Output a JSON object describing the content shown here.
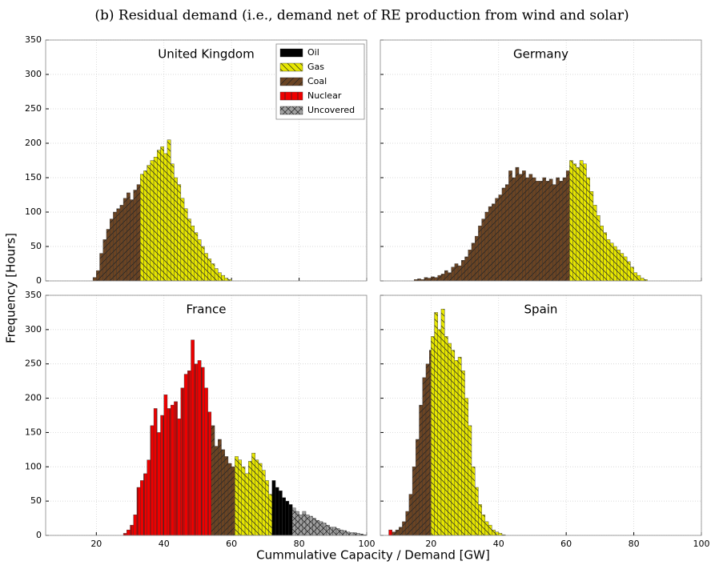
{
  "title": "(b) Residual demand (i.e., demand net of RE production from wind and solar)",
  "xlabel": "Cummulative Capacity / Demand [GW]",
  "ylabel": "Frequency [Hours]",
  "legend": [
    {
      "name": "Oil",
      "color": "#000000",
      "hatch": ""
    },
    {
      "name": "Gas",
      "color": "#e6e600",
      "hatch": "\\\\"
    },
    {
      "name": "Coal",
      "color": "#6b4423",
      "hatch": "//"
    },
    {
      "name": "Nuclear",
      "color": "#ee0000",
      "hatch": "||"
    },
    {
      "name": "Uncovered",
      "color": "#a0a0a0",
      "hatch": "xx"
    }
  ],
  "chart_data": [
    {
      "type": "histogram",
      "title": "United Kingdom",
      "xlim": [
        5,
        100
      ],
      "xticks": [
        20,
        40,
        60,
        80,
        100
      ],
      "ylim": [
        0,
        350
      ],
      "yticks": [
        0,
        50,
        100,
        150,
        200,
        250,
        300,
        350
      ],
      "grid": true,
      "series": [
        {
          "name": "Coal",
          "color": "#6b4423",
          "hatch": "//",
          "bins": [
            19,
            20,
            21,
            22,
            23,
            24,
            25,
            26,
            27,
            28,
            29,
            30,
            31,
            32,
            33
          ],
          "values": [
            5,
            15,
            40,
            60,
            75,
            90,
            100,
            105,
            110,
            120,
            128,
            118,
            132,
            140
          ]
        },
        {
          "name": "Gas",
          "color": "#e6e600",
          "hatch": "\\\\",
          "bins": [
            33,
            34,
            35,
            36,
            37,
            38,
            39,
            40,
            41,
            42,
            43,
            44,
            45,
            46,
            47,
            48,
            49,
            50,
            51,
            52,
            53,
            54,
            55,
            56,
            57,
            58,
            59,
            60
          ],
          "values": [
            155,
            160,
            168,
            175,
            180,
            190,
            195,
            185,
            205,
            170,
            150,
            140,
            120,
            105,
            90,
            80,
            70,
            60,
            50,
            40,
            32,
            25,
            18,
            12,
            8,
            4,
            2
          ]
        }
      ]
    },
    {
      "type": "histogram",
      "title": "Germany",
      "xlim": [
        5,
        100
      ],
      "xticks": [
        20,
        40,
        60,
        80,
        100
      ],
      "ylim": [
        0,
        350
      ],
      "yticks": [
        0,
        50,
        100,
        150,
        200,
        250,
        300,
        350
      ],
      "grid": true,
      "series": [
        {
          "name": "Coal",
          "color": "#6b4423",
          "hatch": "//",
          "bins": [
            15,
            16,
            17,
            18,
            19,
            20,
            21,
            22,
            23,
            24,
            25,
            26,
            27,
            28,
            29,
            30,
            31,
            32,
            33,
            34,
            35,
            36,
            37,
            38,
            39,
            40,
            41,
            42,
            43,
            44,
            45,
            46,
            47,
            48,
            49,
            50,
            51,
            52,
            53,
            54,
            55,
            56,
            57,
            58,
            59,
            60,
            61
          ],
          "values": [
            2,
            3,
            2,
            5,
            4,
            6,
            5,
            8,
            10,
            15,
            12,
            20,
            25,
            22,
            30,
            35,
            45,
            55,
            65,
            80,
            90,
            100,
            108,
            112,
            120,
            125,
            135,
            140,
            160,
            150,
            165,
            155,
            160,
            150,
            155,
            150,
            145,
            145,
            150,
            145,
            148,
            140,
            150,
            145,
            150,
            160
          ]
        },
        {
          "name": "Gas",
          "color": "#e6e600",
          "hatch": "\\\\",
          "bins": [
            61,
            62,
            63,
            64,
            65,
            66,
            67,
            68,
            69,
            70,
            71,
            72,
            73,
            74,
            75,
            76,
            77,
            78,
            79,
            80,
            81,
            82,
            83,
            84
          ],
          "values": [
            175,
            170,
            165,
            175,
            170,
            150,
            130,
            110,
            95,
            80,
            70,
            60,
            55,
            50,
            45,
            40,
            35,
            28,
            20,
            12,
            8,
            4,
            2
          ]
        }
      ]
    },
    {
      "type": "histogram",
      "title": "France",
      "xlim": [
        5,
        100
      ],
      "xticks": [
        20,
        40,
        60,
        80,
        100
      ],
      "ylim": [
        0,
        350
      ],
      "yticks": [
        0,
        50,
        100,
        150,
        200,
        250,
        300,
        350
      ],
      "grid": true,
      "series": [
        {
          "name": "Nuclear",
          "color": "#ee0000",
          "hatch": "||",
          "bins": [
            28,
            29,
            30,
            31,
            32,
            33,
            34,
            35,
            36,
            37,
            38,
            39,
            40,
            41,
            42,
            43,
            44,
            45,
            46,
            47,
            48,
            49,
            50,
            51,
            52,
            53,
            54
          ],
          "values": [
            3,
            8,
            15,
            30,
            70,
            80,
            90,
            110,
            160,
            185,
            150,
            175,
            205,
            185,
            190,
            195,
            170,
            215,
            235,
            240,
            285,
            250,
            255,
            245,
            215,
            180
          ]
        },
        {
          "name": "Coal",
          "color": "#6b4423",
          "hatch": "//",
          "bins": [
            54,
            55,
            56,
            57,
            58,
            59,
            60,
            61
          ],
          "values": [
            160,
            130,
            140,
            125,
            115,
            105,
            100
          ]
        },
        {
          "name": "Gas",
          "color": "#e6e600",
          "hatch": "\\\\",
          "bins": [
            61,
            62,
            63,
            64,
            65,
            66,
            67,
            68,
            69,
            70,
            71,
            72
          ],
          "values": [
            115,
            110,
            100,
            90,
            108,
            120,
            110,
            105,
            95,
            80,
            60
          ]
        },
        {
          "name": "Oil",
          "color": "#000000",
          "hatch": "",
          "bins": [
            72,
            73,
            74,
            75,
            76,
            77,
            78
          ],
          "values": [
            80,
            70,
            65,
            55,
            50,
            45
          ]
        },
        {
          "name": "Uncovered",
          "color": "#a0a0a0",
          "hatch": "xx",
          "bins": [
            78,
            79,
            80,
            81,
            82,
            83,
            84,
            85,
            86,
            87,
            88,
            89,
            90,
            91,
            92,
            93,
            94,
            95,
            96,
            97,
            98,
            99,
            100
          ],
          "values": [
            40,
            35,
            30,
            35,
            30,
            28,
            25,
            22,
            20,
            18,
            15,
            12,
            12,
            10,
            8,
            7,
            5,
            4,
            4,
            3,
            2,
            1
          ]
        }
      ]
    },
    {
      "type": "histogram",
      "title": "Spain",
      "xlim": [
        5,
        100
      ],
      "xticks": [
        20,
        40,
        60,
        80,
        100
      ],
      "ylim": [
        0,
        350
      ],
      "yticks": [
        0,
        50,
        100,
        150,
        200,
        250,
        300,
        350
      ],
      "grid": true,
      "series": [
        {
          "name": "Nuclear",
          "color": "#ee0000",
          "hatch": "||",
          "bins": [
            7.5,
            8.5
          ],
          "values": [
            8
          ]
        },
        {
          "name": "Coal",
          "color": "#6b4423",
          "hatch": "//",
          "bins": [
            8.5,
            9.5,
            10.5,
            11.5,
            12.5,
            13.5,
            14.5,
            15.5,
            16.5,
            17.5,
            18.5,
            19.5,
            20
          ],
          "values": [
            5,
            8,
            12,
            20,
            35,
            60,
            100,
            140,
            190,
            230,
            250,
            270
          ]
        },
        {
          "name": "Gas",
          "color": "#e6e600",
          "hatch": "\\\\",
          "bins": [
            20,
            21,
            22,
            23,
            24,
            25,
            26,
            27,
            28,
            29,
            30,
            31,
            32,
            33,
            34,
            35,
            36,
            37,
            38,
            39,
            40,
            41,
            42
          ],
          "values": [
            290,
            325,
            300,
            330,
            290,
            280,
            270,
            255,
            260,
            240,
            200,
            160,
            100,
            70,
            45,
            30,
            20,
            15,
            8,
            5,
            3,
            1
          ]
        }
      ]
    }
  ]
}
